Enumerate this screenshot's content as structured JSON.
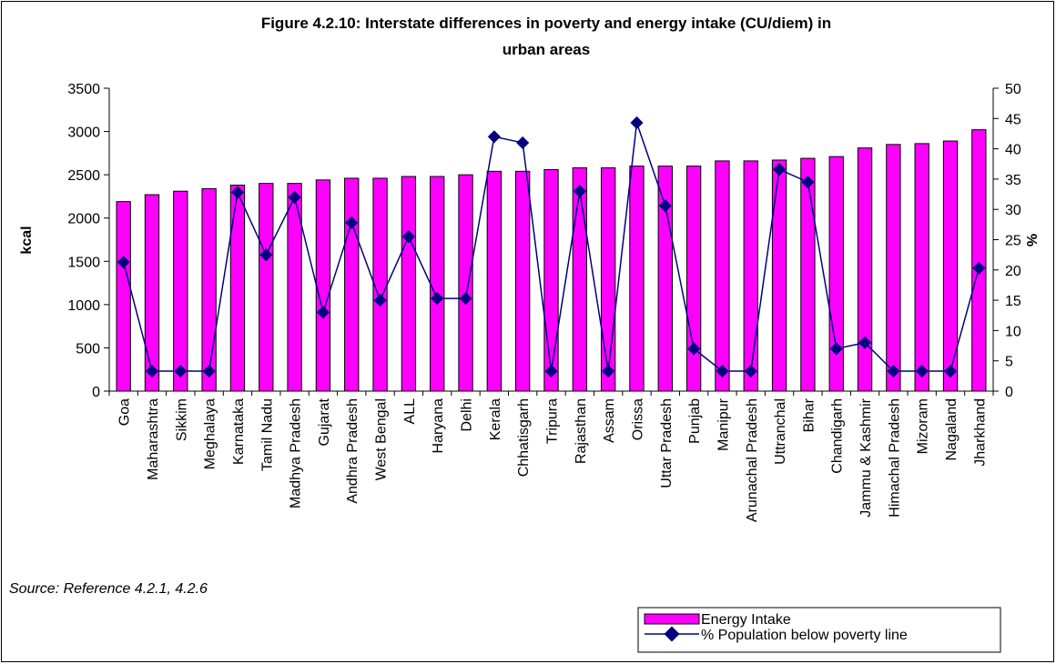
{
  "chart_data": {
    "type": "bar+line",
    "title_lines": [
      "Figure 4.2.10: Interstate differences in poverty and energy intake (CU/diem) in",
      "urban areas"
    ],
    "ylabel_left": "kcal",
    "ylabel_right": "%",
    "ylim_left": [
      0,
      3500
    ],
    "ylim_right": [
      0,
      50
    ],
    "yticks_left": [
      "0",
      "500",
      "1000",
      "1500",
      "2000",
      "2500",
      "3000",
      "3500"
    ],
    "yticks_right": [
      "0",
      "5",
      "10",
      "15",
      "20",
      "25",
      "30",
      "35",
      "40",
      "45",
      "50"
    ],
    "categories": [
      "Goa",
      "Maharashtra",
      "Sikkim",
      "Meghalaya",
      "Karnataka",
      "Tamil Nadu",
      "Madhya Pradesh",
      "Gujarat",
      "Andhra Pradesh",
      "West Bengal",
      "ALL",
      "Haryana",
      "Delhi",
      "Kerala",
      "Chhatisgarh",
      "Tripura",
      "Rajasthan",
      "Assam",
      "Orissa",
      "Uttar Pradesh",
      "Punjab",
      "Manipur",
      "Arunachal Pradesh",
      "Uttranchal",
      "Bihar",
      "Chandigarh",
      "Jammu & Kashmir",
      "Himachal Pradesh",
      "Mizoram",
      "Nagaland",
      "Jharkhand"
    ],
    "series": [
      {
        "name": "Energy Intake",
        "type": "bar",
        "axis": "left",
        "color": "#ff00ff",
        "values": [
          2190,
          2270,
          2310,
          2340,
          2380,
          2400,
          2400,
          2440,
          2460,
          2460,
          2480,
          2480,
          2500,
          2540,
          2540,
          2560,
          2580,
          2580,
          2600,
          2600,
          2600,
          2660,
          2660,
          2670,
          2690,
          2710,
          2810,
          2850,
          2860,
          2890,
          3020
        ]
      },
      {
        "name": "% Population below poverty line",
        "type": "line",
        "axis": "right",
        "color": "#000080",
        "values": [
          21.3,
          3.3,
          3.3,
          3.3,
          32.8,
          22.5,
          32.0,
          13.0,
          27.8,
          15.0,
          25.5,
          15.3,
          15.3,
          42.0,
          41.0,
          3.3,
          33.0,
          3.3,
          44.3,
          30.6,
          7.0,
          3.3,
          3.3,
          36.6,
          34.5,
          7.0,
          8.0,
          3.3,
          3.3,
          3.3,
          20.3
        ]
      }
    ],
    "legend_position": "bottom-right",
    "grid": false
  },
  "source_note": "Source: Reference 4.2.1, 4.2.6"
}
